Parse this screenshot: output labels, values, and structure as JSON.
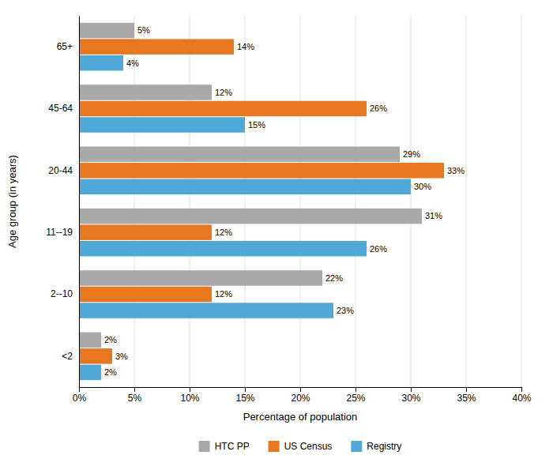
{
  "chart_data": {
    "type": "bar",
    "orientation": "horizontal",
    "categories": [
      "65+",
      "45-64",
      "20-44",
      "11--19",
      "2--10",
      "<2"
    ],
    "series": [
      {
        "name": "HTC PP",
        "color": "#A9A9A9",
        "values": [
          5,
          12,
          29,
          31,
          22,
          2
        ],
        "value_labels": [
          "5%",
          "12%",
          "29%",
          "31%",
          "22%",
          "2%"
        ]
      },
      {
        "name": "US Census",
        "color": "#E87722",
        "values": [
          14,
          26,
          33,
          12,
          12,
          3
        ],
        "value_labels": [
          "14%",
          "26%",
          "33%",
          "12%",
          "12%",
          "3%"
        ]
      },
      {
        "name": "Registry",
        "color": "#4FA8D5",
        "values": [
          4,
          15,
          30,
          26,
          23,
          2
        ],
        "value_labels": [
          "4%",
          "15%",
          "30%",
          "26%",
          "23%",
          "2%"
        ]
      }
    ],
    "xlabel": "Percentage of population",
    "ylabel": "Age group (in years)",
    "xlim": [
      0,
      40
    ],
    "xticks": [
      {
        "value": 0,
        "label": "0%"
      },
      {
        "value": 5,
        "label": "5%"
      },
      {
        "value": 10,
        "label": "10%"
      },
      {
        "value": 15,
        "label": "15%"
      },
      {
        "value": 20,
        "label": "20%"
      },
      {
        "value": 25,
        "label": "25%"
      },
      {
        "value": 30,
        "label": "30%"
      },
      {
        "value": 35,
        "label": "35%"
      },
      {
        "value": 40,
        "label": "40%"
      }
    ],
    "grid": true,
    "data_labels": true,
    "legend": "bottom"
  }
}
